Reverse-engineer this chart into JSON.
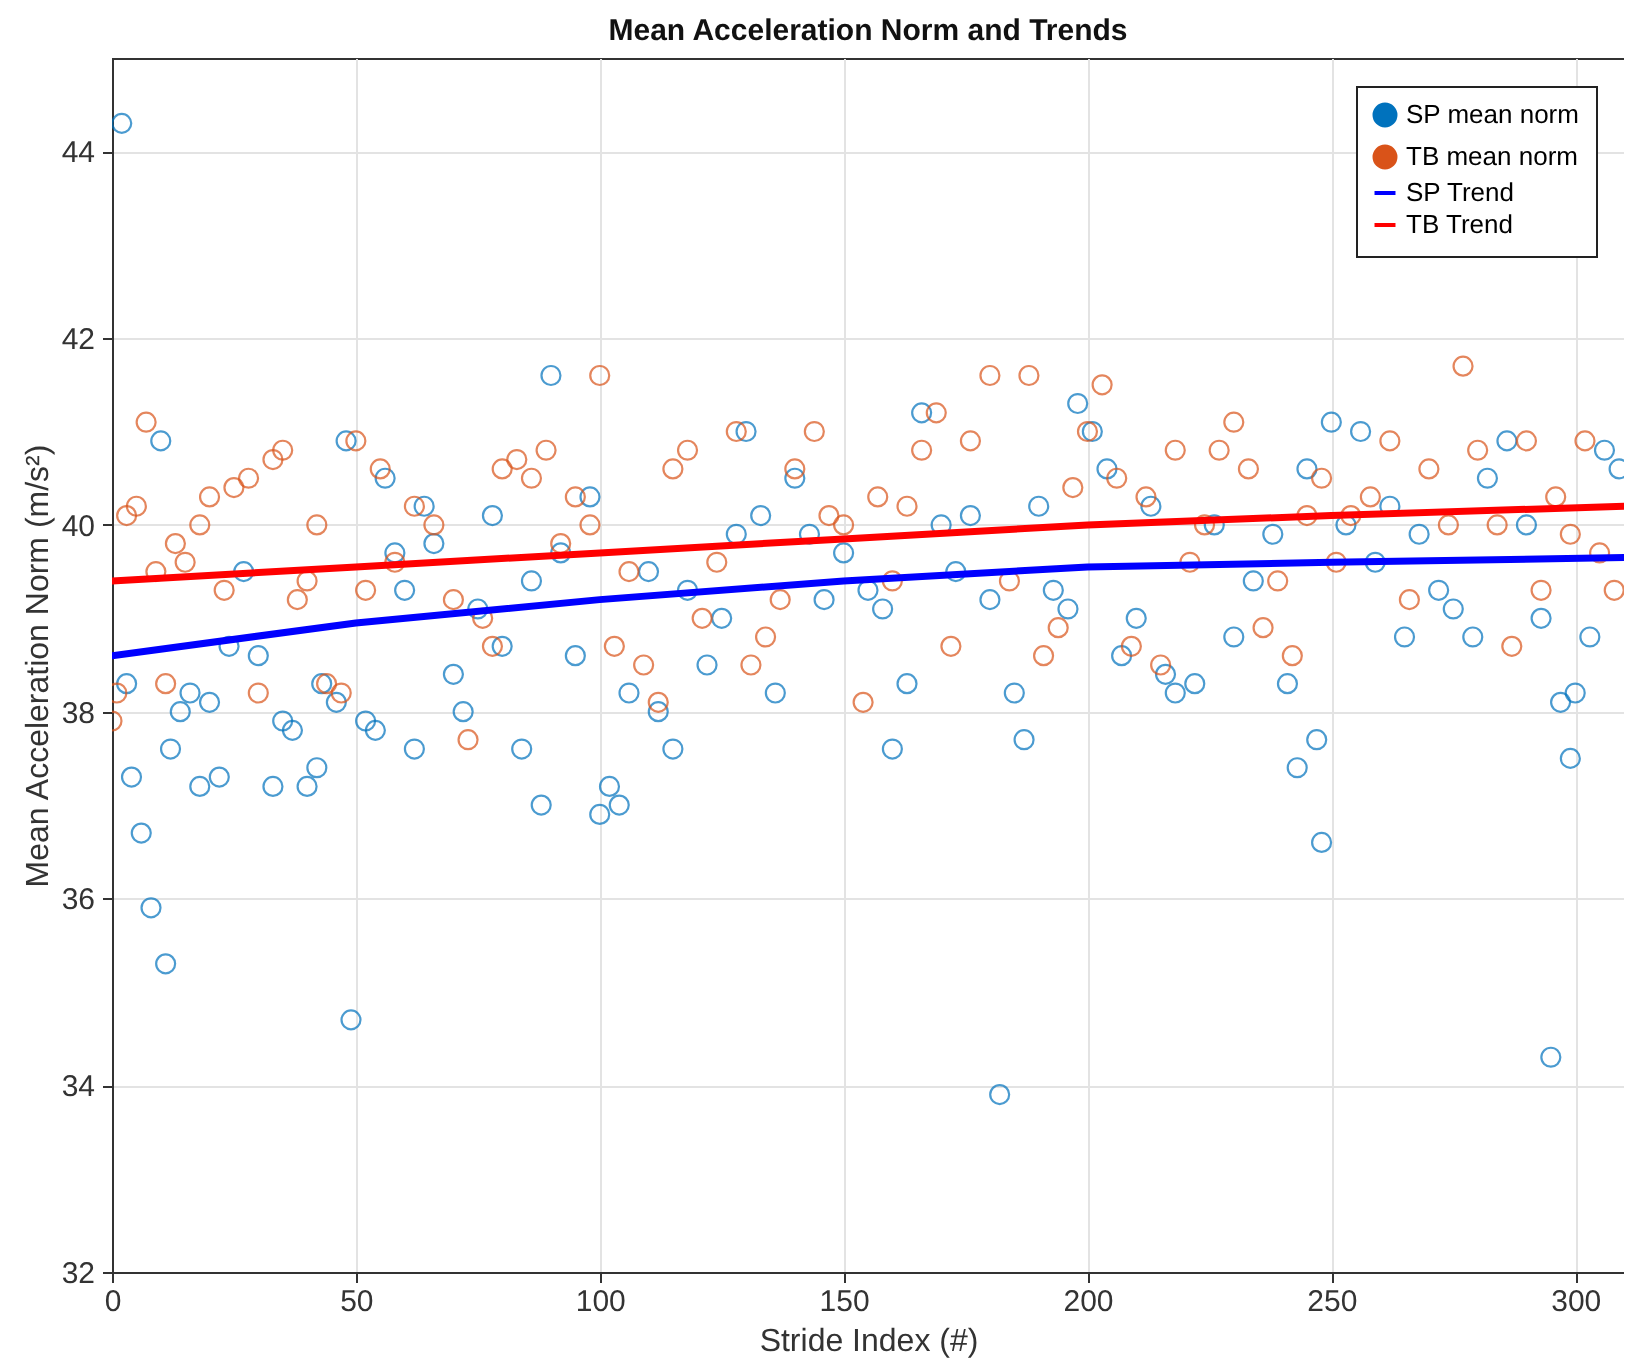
{
  "chart_data": {
    "type": "scatter",
    "title": "Mean Acceleration Norm and Trends",
    "xlabel": "Stride Index (#)",
    "ylabel": "Mean Acceleration Norm (m/s²)",
    "xlim": [
      0,
      310
    ],
    "ylim": [
      32,
      45
    ],
    "xticks": [
      0,
      50,
      100,
      150,
      200,
      250,
      300
    ],
    "yticks": [
      32,
      34,
      36,
      38,
      40,
      42,
      44
    ],
    "grid": true,
    "legend": "top right",
    "series": [
      {
        "name": "SP mean norm",
        "marker": "circle",
        "color": "#0072bd",
        "x": [
          2,
          3,
          4,
          6,
          8,
          10,
          11,
          12,
          14,
          16,
          18,
          20,
          22,
          24,
          27,
          30,
          33,
          35,
          37,
          40,
          42,
          43,
          46,
          48,
          49,
          52,
          54,
          56,
          58,
          60,
          62,
          64,
          66,
          70,
          72,
          75,
          78,
          80,
          84,
          86,
          88,
          90,
          92,
          95,
          98,
          100,
          102,
          104,
          106,
          110,
          112,
          115,
          118,
          122,
          125,
          128,
          130,
          133,
          136,
          140,
          143,
          146,
          150,
          155,
          158,
          160,
          163,
          166,
          170,
          173,
          176,
          180,
          182,
          185,
          187,
          190,
          193,
          196,
          198,
          201,
          204,
          207,
          210,
          213,
          216,
          218,
          222,
          226,
          230,
          234,
          238,
          241,
          243,
          245,
          247,
          248,
          250,
          253,
          256,
          259,
          262,
          265,
          268,
          272,
          275,
          279,
          282,
          286,
          290,
          293,
          295,
          297,
          299,
          300,
          303,
          306,
          309
        ],
        "values": [
          44.3,
          38.3,
          37.3,
          36.7,
          35.9,
          40.9,
          35.3,
          37.6,
          38.0,
          38.2,
          37.2,
          38.1,
          37.3,
          38.7,
          39.5,
          38.6,
          37.2,
          37.9,
          37.8,
          37.2,
          37.4,
          38.3,
          38.1,
          40.9,
          34.7,
          37.9,
          37.8,
          40.5,
          39.7,
          39.3,
          37.6,
          40.2,
          39.8,
          38.4,
          38.0,
          39.1,
          40.1,
          38.7,
          37.6,
          39.4,
          37.0,
          41.6,
          39.7,
          38.6,
          40.3,
          36.9,
          37.2,
          37.0,
          38.2,
          39.5,
          38.0,
          37.6,
          39.3,
          38.5,
          39.0,
          39.9,
          41.0,
          40.1,
          38.2,
          40.5,
          39.9,
          39.2,
          39.7,
          39.3,
          39.1,
          37.6,
          38.3,
          41.2,
          40.0,
          39.5,
          40.1,
          39.2,
          33.9,
          38.2,
          37.7,
          40.2,
          39.3,
          39.1,
          41.3,
          41.0,
          40.6,
          38.6,
          39.0,
          40.2,
          38.4,
          38.2,
          38.3,
          40.0,
          38.8,
          39.4,
          39.9,
          38.3,
          37.4,
          40.6,
          37.7,
          36.6,
          41.1,
          40.0,
          41.0,
          39.6,
          40.2,
          38.8,
          39.9,
          39.3,
          39.1,
          38.8,
          40.5,
          40.9,
          40.0,
          39.0,
          34.3,
          38.1,
          37.5,
          38.2,
          38.8,
          40.8,
          40.6
        ]
      },
      {
        "name": "TB mean norm",
        "marker": "circle",
        "color": "#d95319",
        "x": [
          0,
          1,
          3,
          5,
          7,
          9,
          11,
          13,
          15,
          18,
          20,
          23,
          25,
          28,
          30,
          33,
          35,
          38,
          40,
          42,
          44,
          47,
          50,
          52,
          55,
          58,
          62,
          66,
          70,
          73,
          76,
          78,
          80,
          83,
          86,
          89,
          92,
          95,
          98,
          100,
          103,
          106,
          109,
          112,
          115,
          118,
          121,
          124,
          128,
          131,
          134,
          137,
          140,
          144,
          147,
          150,
          154,
          157,
          160,
          163,
          166,
          169,
          172,
          176,
          180,
          184,
          188,
          191,
          194,
          197,
          200,
          203,
          206,
          209,
          212,
          215,
          218,
          221,
          224,
          227,
          230,
          233,
          236,
          239,
          242,
          245,
          248,
          251,
          254,
          258,
          262,
          266,
          270,
          274,
          277,
          280,
          284,
          287,
          290,
          293,
          296,
          299,
          302,
          305,
          308
        ],
        "values": [
          37.9,
          38.2,
          40.1,
          40.2,
          41.1,
          39.5,
          38.3,
          39.8,
          39.6,
          40.0,
          40.3,
          39.3,
          40.4,
          40.5,
          38.2,
          40.7,
          40.8,
          39.2,
          39.4,
          40.0,
          38.3,
          38.2,
          40.9,
          39.3,
          40.6,
          39.6,
          40.2,
          40.0,
          39.2,
          37.7,
          39.0,
          38.7,
          40.6,
          40.7,
          40.5,
          40.8,
          39.8,
          40.3,
          40.0,
          41.6,
          38.7,
          39.5,
          38.5,
          38.1,
          40.6,
          40.8,
          39.0,
          39.6,
          41.0,
          38.5,
          38.8,
          39.2,
          40.6,
          41.0,
          40.1,
          40.0,
          38.1,
          40.3,
          39.4,
          40.2,
          40.8,
          41.2,
          38.7,
          40.9,
          41.6,
          39.4,
          41.6,
          38.6,
          38.9,
          40.4,
          41.0,
          41.5,
          40.5,
          38.7,
          40.3,
          38.5,
          40.8,
          39.6,
          40.0,
          40.8,
          41.1,
          40.6,
          38.9,
          39.4,
          38.6,
          40.1,
          40.5,
          39.6,
          40.1,
          40.3,
          40.9,
          39.2,
          40.6,
          40.0,
          41.7,
          40.8,
          40.0,
          38.7,
          40.9,
          39.3,
          40.3,
          39.9,
          40.9,
          39.7,
          39.3
        ]
      },
      {
        "name": "SP Trend",
        "type": "line",
        "color": "#0000ff",
        "x": [
          0,
          50,
          100,
          150,
          200,
          250,
          310
        ],
        "values": [
          38.6,
          38.95,
          39.2,
          39.4,
          39.55,
          39.6,
          39.65
        ]
      },
      {
        "name": "TB Trend",
        "type": "line",
        "color": "#ff0000",
        "x": [
          0,
          50,
          100,
          150,
          200,
          250,
          310
        ],
        "values": [
          39.4,
          39.55,
          39.7,
          39.85,
          40.0,
          40.1,
          40.2
        ]
      }
    ]
  }
}
